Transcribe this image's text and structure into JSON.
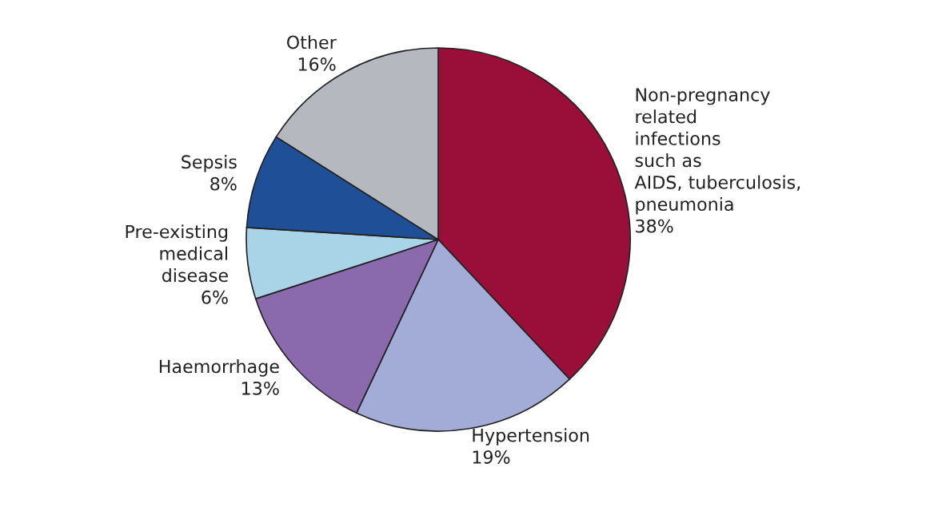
{
  "chart_data": {
    "type": "pie",
    "categories": [
      "Non-pregnancy\nrelated\ninfections\nsuch as\nAIDS, tuberculosis,\npneumonia",
      "Hypertension",
      "Haemorrhage",
      "Pre-existing\nmedical\ndisease",
      "Sepsis",
      "Other"
    ],
    "values": [
      38,
      19,
      13,
      6,
      8,
      16
    ],
    "colors": [
      "#990f3a",
      "#a3acd6",
      "#8a6aad",
      "#a9d4e8",
      "#1f4f96",
      "#b5b9bf"
    ],
    "value_labels": [
      "38%",
      "19%",
      "13%",
      "6%",
      "8%",
      "16%"
    ],
    "legend": false
  }
}
